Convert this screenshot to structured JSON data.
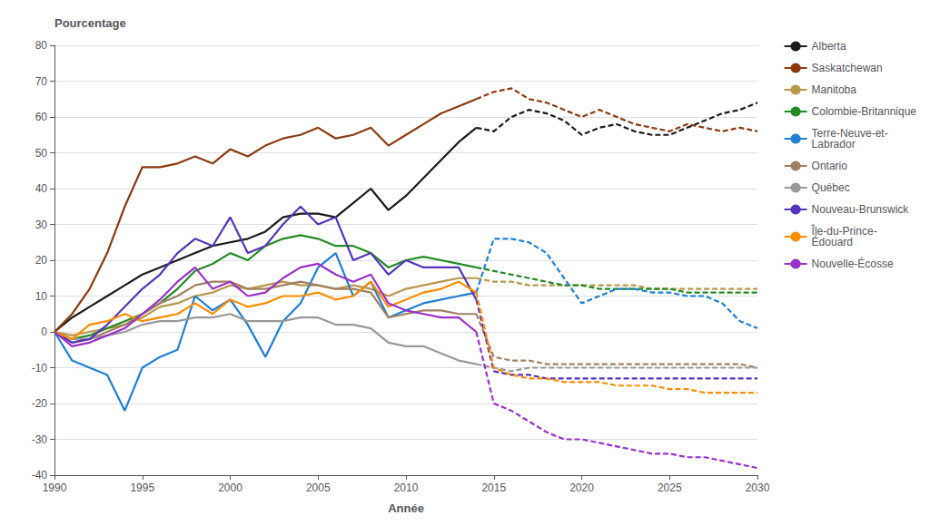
{
  "chart_data": {
    "type": "line",
    "xlabel": "Année",
    "ylabel": "Pourcentage",
    "xlim": [
      1990,
      2030
    ],
    "xticks": [
      1990,
      1995,
      2000,
      2005,
      2010,
      2015,
      2020,
      2025,
      2030
    ],
    "ylim": [
      -40,
      80
    ],
    "yticks": [
      -40,
      -30,
      -20,
      -10,
      0,
      10,
      20,
      30,
      40,
      50,
      60,
      70,
      80
    ],
    "grid": true,
    "legend": "right",
    "series": [
      {
        "name": "Alberta",
        "color": "#1a1a1a",
        "line_style": "solid",
        "x": [
          1990,
          1991,
          1992,
          1993,
          1994,
          1995,
          1996,
          1997,
          1998,
          1999,
          2000,
          2001,
          2002,
          2003,
          2004,
          2005,
          2006,
          2007,
          2008,
          2009,
          2010,
          2011,
          2012,
          2013,
          2014
        ],
        "values": [
          0,
          4,
          7,
          10,
          13,
          16,
          18,
          20,
          22,
          24,
          25,
          26,
          28,
          32,
          33,
          33,
          32,
          36,
          40,
          34,
          38,
          43,
          48,
          53,
          57
        ]
      },
      {
        "name": "Alberta",
        "color": "#1a1a1a",
        "line_style": "dashed",
        "x": [
          2014,
          2015,
          2016,
          2017,
          2018,
          2019,
          2020,
          2021,
          2022,
          2023,
          2024,
          2025,
          2026,
          2027,
          2028,
          2029,
          2030
        ],
        "values": [
          57,
          56,
          60,
          62,
          61,
          59,
          55,
          57,
          58,
          56,
          55,
          55,
          57,
          59,
          61,
          62,
          64
        ]
      },
      {
        "name": "Saskatchewan",
        "color": "#8B3A0F",
        "line_style": "solid",
        "x": [
          1990,
          1991,
          1992,
          1993,
          1994,
          1995,
          1996,
          1997,
          1998,
          1999,
          2000,
          2001,
          2002,
          2003,
          2004,
          2005,
          2006,
          2007,
          2008,
          2009,
          2010,
          2011,
          2012,
          2013,
          2014
        ],
        "values": [
          0,
          5,
          12,
          22,
          35,
          46,
          46,
          47,
          49,
          47,
          51,
          49,
          52,
          54,
          55,
          57,
          54,
          55,
          57,
          52,
          55,
          58,
          61,
          63,
          65
        ]
      },
      {
        "name": "Saskatchewan",
        "color": "#8B3A0F",
        "line_style": "dashed",
        "x": [
          2014,
          2015,
          2016,
          2017,
          2018,
          2019,
          2020,
          2021,
          2022,
          2023,
          2024,
          2025,
          2026,
          2027,
          2028,
          2029,
          2030
        ],
        "values": [
          65,
          67,
          68,
          65,
          64,
          62,
          60,
          62,
          60,
          58,
          57,
          56,
          58,
          57,
          56,
          57,
          56
        ]
      },
      {
        "name": "Manitoba",
        "color": "#b8964a",
        "line_style": "solid",
        "x": [
          1990,
          1991,
          1992,
          1993,
          1994,
          1995,
          1996,
          1997,
          1998,
          1999,
          2000,
          2001,
          2002,
          2003,
          2004,
          2005,
          2006,
          2007,
          2008,
          2009,
          2010,
          2011,
          2012,
          2013,
          2014
        ],
        "values": [
          0,
          -1,
          0,
          1,
          2,
          4,
          7,
          8,
          10,
          11,
          13,
          12,
          13,
          14,
          13,
          13,
          12,
          13,
          12,
          10,
          12,
          13,
          14,
          15,
          15
        ]
      },
      {
        "name": "Manitoba",
        "color": "#b8964a",
        "line_style": "dashed",
        "x": [
          2014,
          2015,
          2016,
          2017,
          2018,
          2019,
          2020,
          2021,
          2022,
          2023,
          2024,
          2025,
          2026,
          2027,
          2028,
          2029,
          2030
        ],
        "values": [
          15,
          14,
          14,
          13,
          13,
          13,
          13,
          13,
          13,
          13,
          12,
          12,
          12,
          12,
          12,
          12,
          12
        ]
      },
      {
        "name": "Colombie-Britannique",
        "color": "#228B22",
        "line_style": "solid",
        "x": [
          1990,
          1991,
          1992,
          1993,
          1994,
          1995,
          1996,
          1997,
          1998,
          1999,
          2000,
          2001,
          2002,
          2003,
          2004,
          2005,
          2006,
          2007,
          2008,
          2009,
          2010,
          2011,
          2012,
          2013,
          2014
        ],
        "values": [
          0,
          -2,
          -1,
          1,
          3,
          5,
          8,
          12,
          17,
          19,
          22,
          20,
          24,
          26,
          27,
          26,
          24,
          24,
          22,
          18,
          20,
          21,
          20,
          19,
          18
        ]
      },
      {
        "name": "Colombie-Britannique",
        "color": "#228B22",
        "line_style": "dashed",
        "x": [
          2014,
          2015,
          2016,
          2017,
          2018,
          2019,
          2020,
          2021,
          2022,
          2023,
          2024,
          2025,
          2026,
          2027,
          2028,
          2029,
          2030
        ],
        "values": [
          18,
          17,
          16,
          15,
          14,
          13,
          13,
          12,
          12,
          12,
          12,
          12,
          11,
          11,
          11,
          11,
          11
        ]
      },
      {
        "name": "Terre-Neuve-et-\nLabrador",
        "color": "#1e7fd4",
        "line_style": "solid",
        "x": [
          1990,
          1991,
          1992,
          1993,
          1994,
          1995,
          1996,
          1997,
          1998,
          1999,
          2000,
          2001,
          2002,
          2003,
          2004,
          2005,
          2006,
          2007,
          2008,
          2009,
          2010,
          2011,
          2012,
          2013,
          2014
        ],
        "values": [
          0,
          -8,
          -10,
          -12,
          -22,
          -10,
          -7,
          -5,
          10,
          6,
          9,
          2,
          -7,
          3,
          8,
          18,
          22,
          10,
          14,
          4,
          6,
          8,
          9,
          10,
          11
        ]
      },
      {
        "name": "Terre-Neuve-et-\nLabrador",
        "color": "#1e7fd4",
        "line_style": "dashed",
        "x": [
          2014,
          2015,
          2016,
          2017,
          2018,
          2019,
          2020,
          2021,
          2022,
          2023,
          2024,
          2025,
          2026,
          2027,
          2028,
          2029,
          2030
        ],
        "values": [
          11,
          26,
          26,
          25,
          22,
          15,
          8,
          10,
          12,
          12,
          11,
          11,
          10,
          10,
          8,
          3,
          1
        ]
      },
      {
        "name": "Ontario",
        "color": "#a08060",
        "line_style": "solid",
        "x": [
          1990,
          1991,
          1992,
          1993,
          1994,
          1995,
          1996,
          1997,
          1998,
          1999,
          2000,
          2001,
          2002,
          2003,
          2004,
          2005,
          2006,
          2007,
          2008,
          2009,
          2010,
          2011,
          2012,
          2013,
          2014
        ],
        "values": [
          0,
          -3,
          -2,
          0,
          2,
          5,
          8,
          10,
          13,
          14,
          14,
          12,
          12,
          13,
          14,
          13,
          12,
          12,
          11,
          4,
          5,
          6,
          6,
          5,
          5
        ]
      },
      {
        "name": "Ontario",
        "color": "#a08060",
        "line_style": "dashed",
        "x": [
          2014,
          2015,
          2016,
          2017,
          2018,
          2019,
          2020,
          2021,
          2022,
          2023,
          2024,
          2025,
          2026,
          2027,
          2028,
          2029,
          2030
        ],
        "values": [
          5,
          -7,
          -8,
          -8,
          -9,
          -9,
          -9,
          -9,
          -9,
          -9,
          -9,
          -9,
          -9,
          -9,
          -9,
          -9,
          -10
        ]
      },
      {
        "name": "Québec",
        "color": "#999999",
        "line_style": "solid",
        "x": [
          1990,
          1991,
          1992,
          1993,
          1994,
          1995,
          1996,
          1997,
          1998,
          1999,
          2000,
          2001,
          2002,
          2003,
          2004,
          2005,
          2006,
          2007,
          2008,
          2009,
          2010,
          2011,
          2012,
          2013,
          2014
        ],
        "values": [
          0,
          -2,
          -2,
          -1,
          0,
          2,
          3,
          3,
          4,
          4,
          5,
          3,
          3,
          3,
          4,
          4,
          2,
          2,
          1,
          -3,
          -4,
          -4,
          -6,
          -8,
          -9
        ]
      },
      {
        "name": "Québec",
        "color": "#999999",
        "line_style": "dashed",
        "x": [
          2014,
          2015,
          2016,
          2017,
          2018,
          2019,
          2020,
          2021,
          2022,
          2023,
          2024,
          2025,
          2026,
          2027,
          2028,
          2029,
          2030
        ],
        "values": [
          -9,
          -10,
          -11,
          -10,
          -10,
          -10,
          -10,
          -10,
          -10,
          -10,
          -10,
          -10,
          -10,
          -10,
          -10,
          -10,
          -10
        ]
      },
      {
        "name": "Nouveau-Brunswick",
        "color": "#5533bb",
        "line_style": "solid",
        "x": [
          1990,
          1991,
          1992,
          1993,
          1994,
          1995,
          1996,
          1997,
          1998,
          1999,
          2000,
          2001,
          2002,
          2003,
          2004,
          2005,
          2006,
          2007,
          2008,
          2009,
          2010,
          2011,
          2012,
          2013,
          2014
        ],
        "values": [
          0,
          -3,
          -2,
          2,
          7,
          12,
          16,
          22,
          26,
          24,
          32,
          22,
          24,
          30,
          35,
          30,
          32,
          20,
          22,
          16,
          20,
          18,
          18,
          18,
          9
        ]
      },
      {
        "name": "Nouveau-Brunswick",
        "color": "#5533bb",
        "line_style": "dashed",
        "x": [
          2014,
          2015,
          2016,
          2017,
          2018,
          2019,
          2020,
          2021,
          2022,
          2023,
          2024,
          2025,
          2026,
          2027,
          2028,
          2029,
          2030
        ],
        "values": [
          9,
          -11,
          -12,
          -12,
          -13,
          -13,
          -13,
          -13,
          -13,
          -13,
          -13,
          -13,
          -13,
          -13,
          -13,
          -13,
          -13
        ]
      },
      {
        "name": "Île-du-Prince-\nÉdouard",
        "color": "#ff8c00",
        "line_style": "solid",
        "x": [
          1990,
          1991,
          1992,
          1993,
          1994,
          1995,
          1996,
          1997,
          1998,
          1999,
          2000,
          2001,
          2002,
          2003,
          2004,
          2005,
          2006,
          2007,
          2008,
          2009,
          2010,
          2011,
          2012,
          2013,
          2014
        ],
        "values": [
          0,
          -2,
          2,
          3,
          5,
          3,
          4,
          5,
          8,
          5,
          9,
          7,
          8,
          10,
          10,
          11,
          9,
          10,
          14,
          7,
          9,
          11,
          12,
          14,
          11
        ]
      },
      {
        "name": "Île-du-Prince-\nÉdouard",
        "color": "#ff8c00",
        "line_style": "dashed",
        "x": [
          2014,
          2015,
          2016,
          2017,
          2018,
          2019,
          2020,
          2021,
          2022,
          2023,
          2024,
          2025,
          2026,
          2027,
          2028,
          2029,
          2030
        ],
        "values": [
          11,
          -10,
          -12,
          -13,
          -13,
          -14,
          -14,
          -14,
          -15,
          -15,
          -15,
          -16,
          -16,
          -17,
          -17,
          -17,
          -17
        ]
      },
      {
        "name": "Nouvelle-Écosse",
        "color": "#9b2fc9",
        "line_style": "solid",
        "x": [
          1990,
          1991,
          1992,
          1993,
          1994,
          1995,
          1996,
          1997,
          1998,
          1999,
          2000,
          2001,
          2002,
          2003,
          2004,
          2005,
          2006,
          2007,
          2008,
          2009,
          2010,
          2011,
          2012,
          2013,
          2014
        ],
        "values": [
          0,
          -4,
          -3,
          -1,
          1,
          5,
          9,
          14,
          18,
          12,
          14,
          10,
          11,
          15,
          18,
          19,
          16,
          14,
          16,
          8,
          6,
          5,
          4,
          4,
          0
        ]
      },
      {
        "name": "Nouvelle-Écosse",
        "color": "#9b2fc9",
        "line_style": "dashed",
        "x": [
          2014,
          2015,
          2016,
          2017,
          2018,
          2019,
          2020,
          2021,
          2022,
          2023,
          2024,
          2025,
          2026,
          2027,
          2028,
          2029,
          2030
        ],
        "values": [
          0,
          -20,
          -22,
          -25,
          -28,
          -30,
          -30,
          -31,
          -32,
          -33,
          -34,
          -34,
          -35,
          -35,
          -36,
          -37,
          -38
        ]
      }
    ]
  }
}
